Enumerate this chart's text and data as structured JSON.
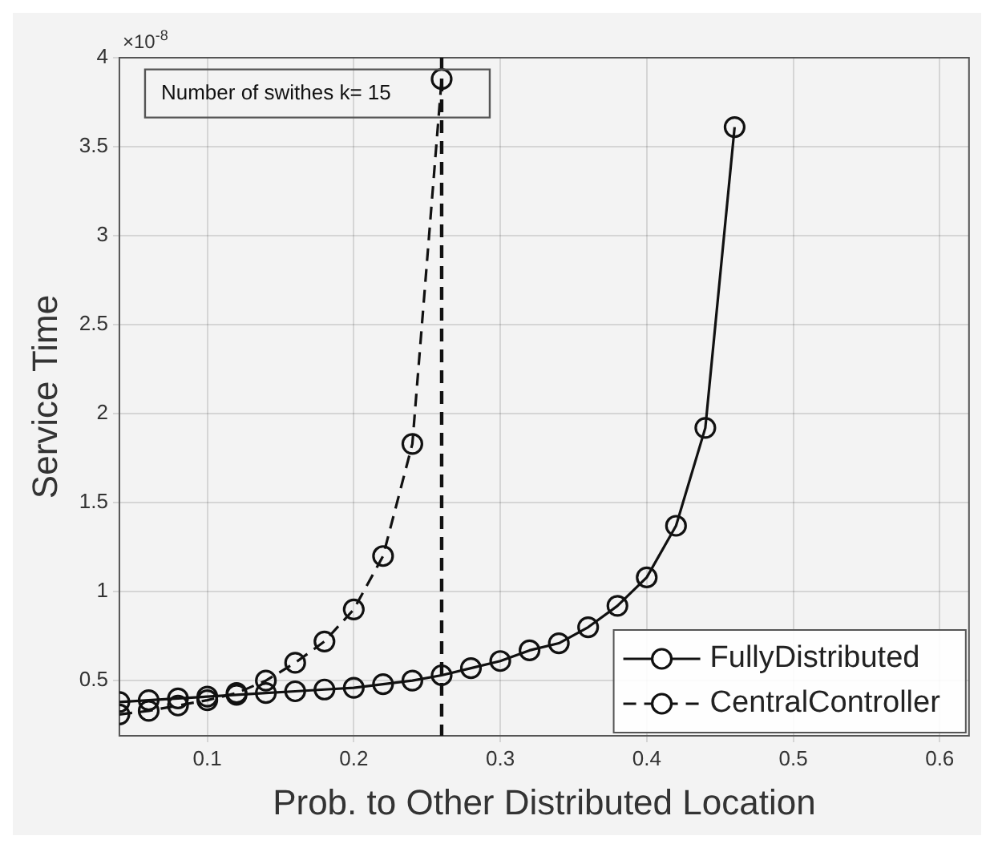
{
  "chart_data": {
    "type": "line",
    "xlabel": "Prob. to Other Distributed Location",
    "ylabel": "Service Time",
    "x": [
      0.04,
      0.06,
      0.08,
      0.1,
      0.12,
      0.14,
      0.16,
      0.18,
      0.2,
      0.22,
      0.24,
      0.26,
      0.28,
      0.3,
      0.32,
      0.34,
      0.36,
      0.38,
      0.4,
      0.42,
      0.44,
      0.46
    ],
    "series": [
      {
        "name": "FullyDistributed",
        "color": "#111111",
        "line_style": "solid",
        "values": [
          0.38,
          0.39,
          0.4,
          0.41,
          0.42,
          0.43,
          0.44,
          0.45,
          0.46,
          0.48,
          0.5,
          0.53,
          0.57,
          0.61,
          0.67,
          0.71,
          0.8,
          0.92,
          1.08,
          1.37,
          1.92,
          3.61
        ]
      },
      {
        "name": "CentralController",
        "color": "#111111",
        "line_style": "dashed",
        "x": [
          0.04,
          0.06,
          0.08,
          0.1,
          0.12,
          0.14,
          0.16,
          0.18,
          0.2,
          0.22,
          0.24,
          0.26
        ],
        "values": [
          0.31,
          0.33,
          0.36,
          0.39,
          0.43,
          0.5,
          0.6,
          0.72,
          0.9,
          1.2,
          1.83,
          3.88
        ]
      }
    ],
    "xlim": [
      0.04,
      0.62
    ],
    "xticks": [
      0.1,
      0.2,
      0.3,
      0.4,
      0.5,
      0.6
    ],
    "ylim": [
      0.19,
      4
    ],
    "yticks": [
      0.5,
      1,
      1.5,
      2,
      2.5,
      3,
      3.5,
      4
    ],
    "ref_lines": [
      {
        "axis": "x",
        "value": 0.26,
        "color": "#111111",
        "line_style": "dashed"
      }
    ],
    "annotations": [
      "×10$^{-8}$",
      {
        "text": "Number of swithes k= 15",
        "x": 0.26,
        "y": 3.88
      }
    ],
    "grid": true,
    "legend": "bottom right",
    "marker": "circle"
  }
}
